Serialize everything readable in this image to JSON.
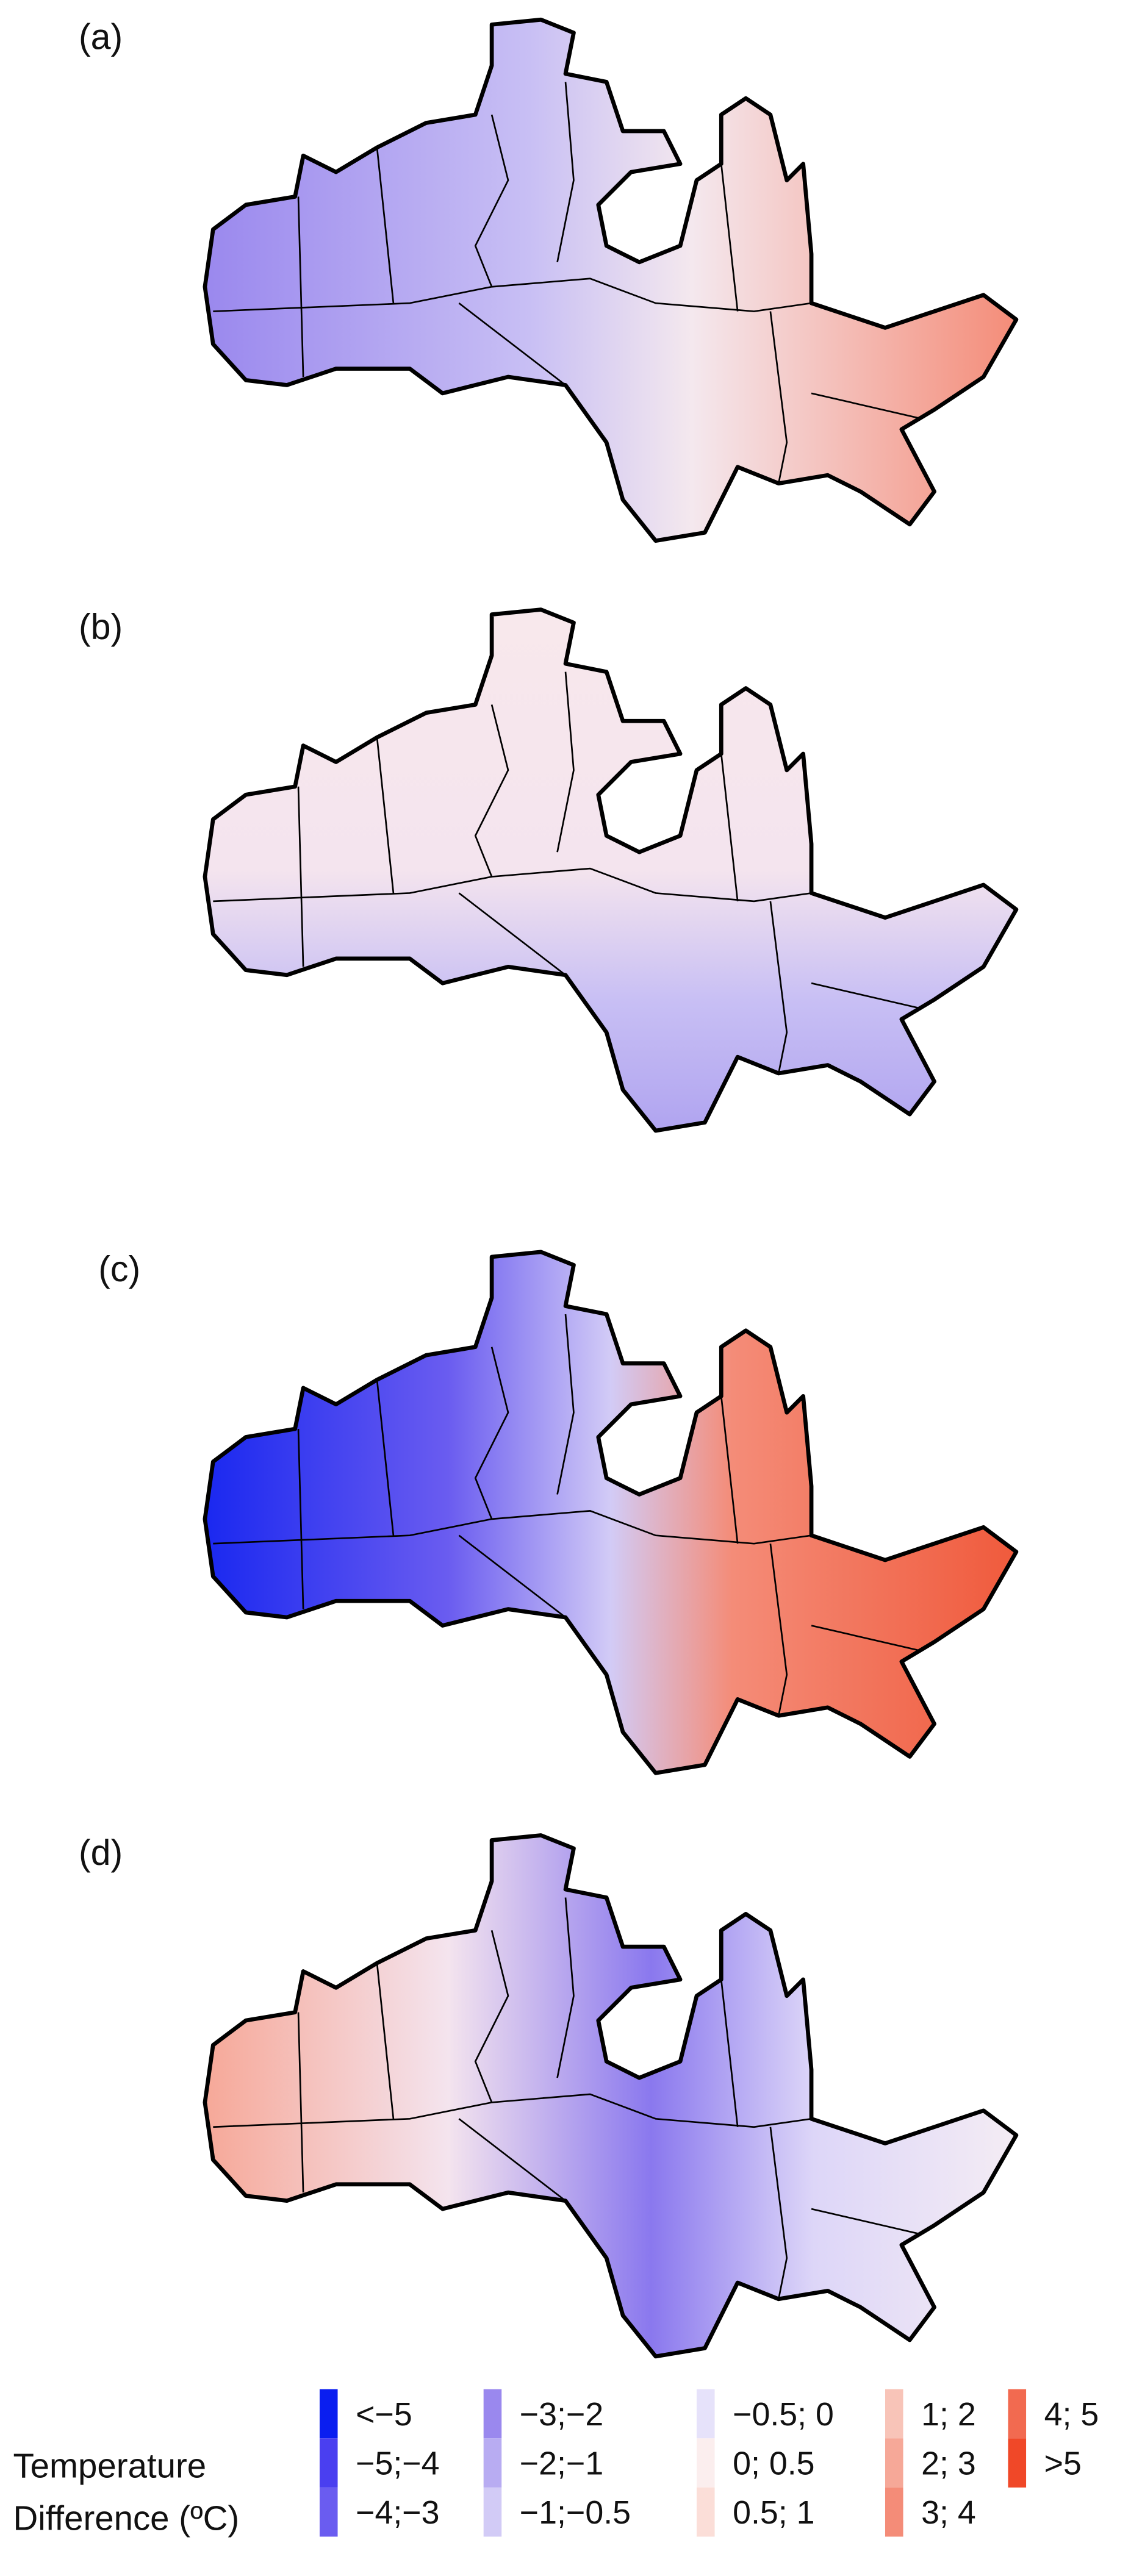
{
  "panels": [
    {
      "label": "(a)"
    },
    {
      "label": "(b)"
    },
    {
      "label": "(c)"
    },
    {
      "label": "(d)"
    }
  ],
  "legend": {
    "title": [
      "Temperature",
      "Difference (ºC)"
    ],
    "items": [
      {
        "label": "<−5",
        "color": "#0a1ef0"
      },
      {
        "label": "−5;−4",
        "color": "#4a3ff0"
      },
      {
        "label": "−4;−3",
        "color": "#6a5cf0"
      },
      {
        "label": "−3;−2",
        "color": "#9a88ee"
      },
      {
        "label": "−2;−1",
        "color": "#b8acf2"
      },
      {
        "label": "−1;−0.5",
        "color": "#d2cbf6"
      },
      {
        "label": "−0.5; 0",
        "color": "#e6e2fa"
      },
      {
        "label": "0; 0.5",
        "color": "#fbeeee"
      },
      {
        "label": "0.5; 1",
        "color": "#fbded8"
      },
      {
        "label": "1; 2",
        "color": "#f8c4b8"
      },
      {
        "label": "2; 3",
        "color": "#f6a898"
      },
      {
        "label": "3; 4",
        "color": "#f48c78"
      },
      {
        "label": "4; 5",
        "color": "#f26a50"
      },
      {
        "label": ">5",
        "color": "#f04828"
      }
    ]
  }
}
